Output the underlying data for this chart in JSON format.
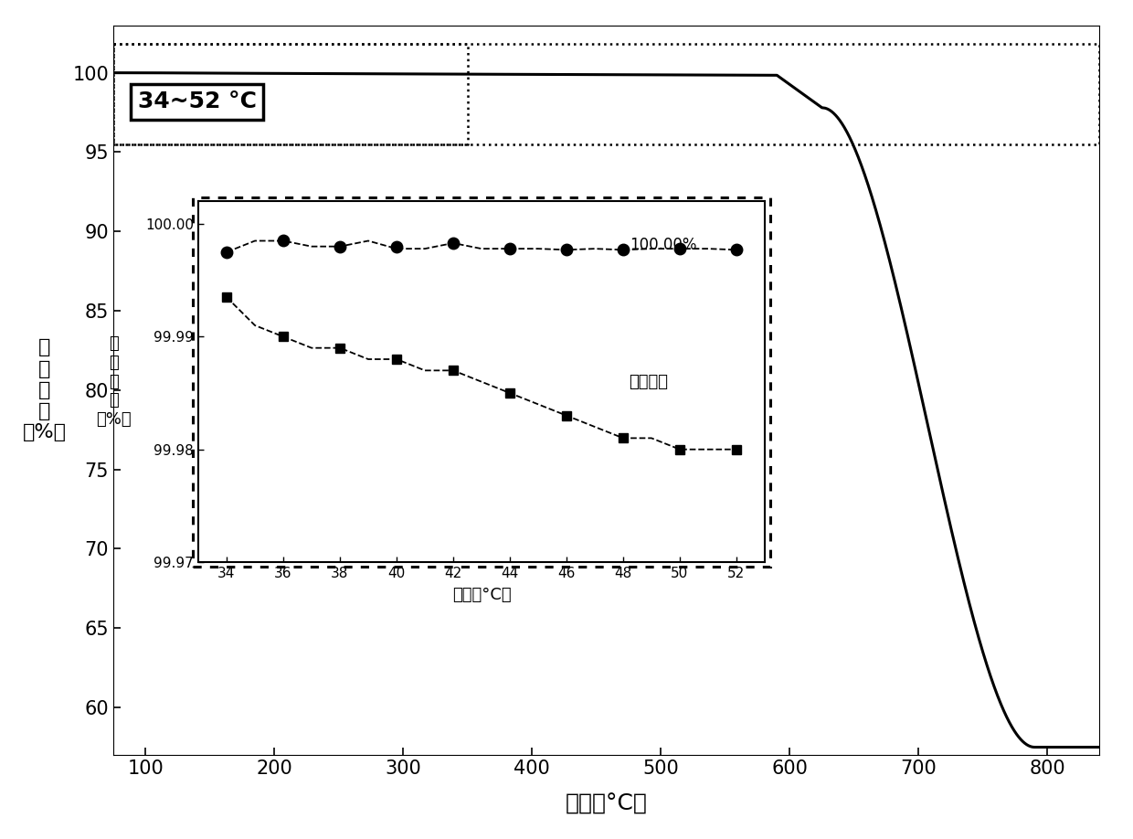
{
  "main_xlabel": "温度（°C）",
  "main_ylabel": "百\n分\n失\n重\n（%）",
  "main_xlim": [
    75,
    840
  ],
  "main_ylim": [
    57,
    103
  ],
  "main_yticks": [
    60,
    65,
    70,
    75,
    80,
    85,
    90,
    95,
    100
  ],
  "main_xticks": [
    100,
    200,
    300,
    400,
    500,
    600,
    700,
    800
  ],
  "annotation_label": "34~52 °C",
  "inset_xlabel": "温度（°C）",
  "inset_ylabel": "百\n分\n失\n重\n（%）",
  "label_100": "100.00%",
  "label_series": "百分失重",
  "bg_color": "#ffffff",
  "line_color": "#000000"
}
